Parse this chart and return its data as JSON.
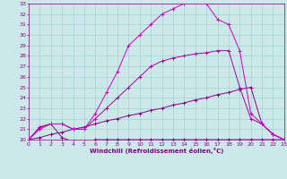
{
  "xlabel": "Windchill (Refroidissement éolien,°C)",
  "xlim": [
    0,
    23
  ],
  "ylim": [
    20,
    33
  ],
  "xticks": [
    0,
    1,
    2,
    3,
    4,
    5,
    6,
    7,
    8,
    9,
    10,
    11,
    12,
    13,
    14,
    15,
    16,
    17,
    18,
    19,
    20,
    21,
    22,
    23
  ],
  "yticks": [
    20,
    21,
    22,
    23,
    24,
    25,
    26,
    27,
    28,
    29,
    30,
    31,
    32,
    33
  ],
  "bg_color": "#cce8e8",
  "grid_color": "#99cccc",
  "line_color": "#880088",
  "lines": [
    {
      "x": [
        0,
        1,
        2,
        3,
        4,
        5,
        6,
        7,
        8,
        9,
        10,
        11,
        12,
        13,
        14,
        15,
        16,
        17,
        18,
        19,
        20,
        21,
        22,
        23
      ],
      "y": [
        20.0,
        21.2,
        21.5,
        20.2,
        19.8,
        19.8,
        20.0,
        20.0,
        20.0,
        20.0,
        20.0,
        20.0,
        20.0,
        20.0,
        20.0,
        20.0,
        20.0,
        20.0,
        20.0,
        20.0,
        20.0,
        20.0,
        20.0,
        20.0
      ],
      "color": "#880088"
    },
    {
      "x": [
        0,
        1,
        2,
        3,
        4,
        5,
        6,
        7,
        8,
        9,
        10,
        11,
        12,
        13,
        14,
        15,
        16,
        17,
        18,
        19,
        20,
        21,
        22,
        23
      ],
      "y": [
        20.0,
        20.2,
        20.5,
        20.7,
        21.0,
        21.2,
        21.5,
        21.8,
        22.0,
        22.3,
        22.5,
        22.8,
        23.0,
        23.3,
        23.5,
        23.8,
        24.0,
        24.3,
        24.5,
        24.8,
        25.0,
        21.5,
        20.5,
        20.0
      ],
      "color": "#880088"
    },
    {
      "x": [
        0,
        1,
        2,
        3,
        4,
        5,
        6,
        7,
        8,
        9,
        10,
        11,
        12,
        13,
        14,
        15,
        16,
        17,
        18,
        19,
        20,
        21,
        22,
        23
      ],
      "y": [
        20.0,
        21.2,
        21.5,
        21.5,
        21.0,
        21.0,
        22.0,
        23.0,
        24.0,
        25.0,
        26.0,
        27.0,
        27.5,
        27.8,
        28.0,
        28.2,
        28.3,
        28.5,
        28.5,
        25.0,
        22.0,
        21.5,
        20.5,
        20.0
      ],
      "color": "#aa00aa"
    },
    {
      "x": [
        0,
        1,
        2,
        3,
        4,
        5,
        6,
        7,
        8,
        9,
        10,
        11,
        12,
        13,
        14,
        15,
        16,
        17,
        18,
        19,
        20,
        21,
        22,
        23
      ],
      "y": [
        20.0,
        21.0,
        21.5,
        21.5,
        21.0,
        21.0,
        22.5,
        24.5,
        26.5,
        29.0,
        30.0,
        31.0,
        32.0,
        32.5,
        33.0,
        33.2,
        33.0,
        31.5,
        31.0,
        28.5,
        22.5,
        21.5,
        20.5,
        20.0
      ],
      "color": "#cc00cc"
    }
  ]
}
